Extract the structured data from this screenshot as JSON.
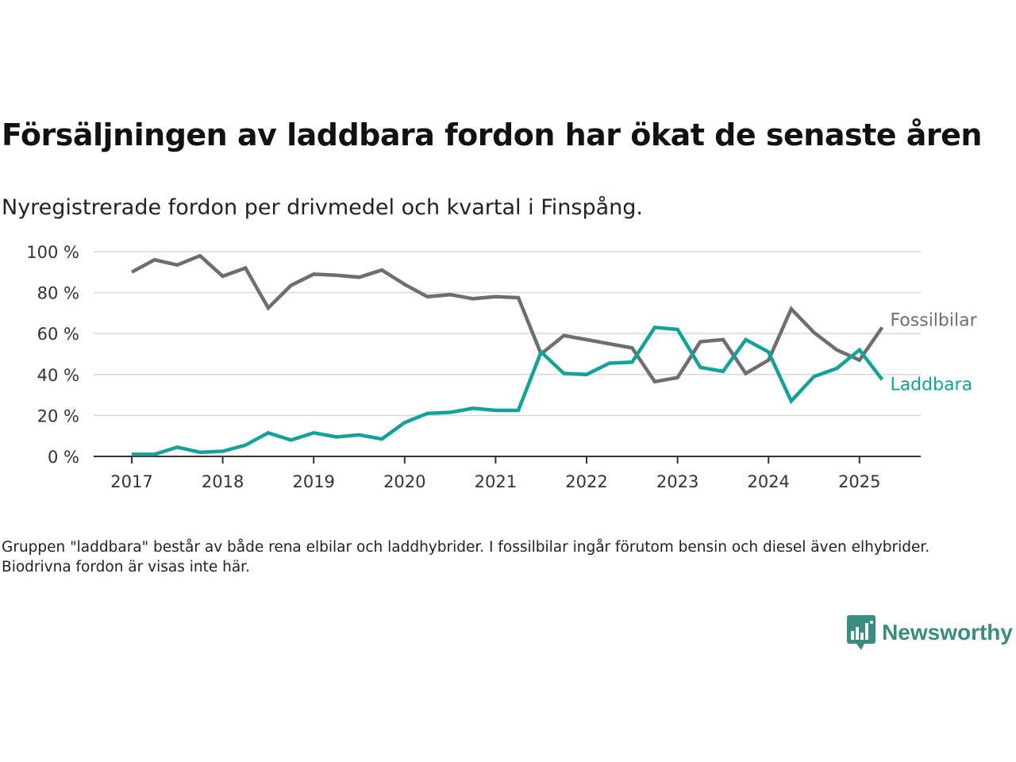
{
  "title": "Försäljningen av laddbara fordon har ökat de senaste åren",
  "subtitle": "Nyregistrerade fordon per drivmedel och kvartal i Finspång.",
  "note": "Gruppen \"laddbara\" består av både rena elbilar och laddhybrider. I fossilbilar ingår förutom bensin och diesel även elhybrider. Biodrivna fordon är visas inte här.",
  "brand": {
    "name": "Newsworthy",
    "icon": "newsworthy-logo-icon"
  },
  "colors": {
    "fossil": "#6e6d72",
    "laddbara": "#14a298",
    "grid": "#d9d9d9",
    "axis": "#333333"
  },
  "chart_data": {
    "type": "line",
    "title": "Försäljningen av laddbara fordon har ökat de senaste åren",
    "subtitle": "Nyregistrerade fordon per drivmedel och kvartal i Finspång.",
    "xlabel": "",
    "ylabel": "",
    "ylim": [
      0,
      100
    ],
    "yticks": [
      "0 %",
      "20 %",
      "40 %",
      "60 %",
      "80 %",
      "100 %"
    ],
    "ytick_values": [
      0,
      20,
      40,
      60,
      80,
      100
    ],
    "xticks": [
      "2017",
      "2018",
      "2019",
      "2020",
      "2021",
      "2022",
      "2023",
      "2024",
      "2025"
    ],
    "grid": true,
    "legend": "inline labels at line ends",
    "x": [
      "2017Q1",
      "2017Q2",
      "2017Q3",
      "2017Q4",
      "2018Q1",
      "2018Q2",
      "2018Q3",
      "2018Q4",
      "2019Q1",
      "2019Q2",
      "2019Q3",
      "2019Q4",
      "2020Q1",
      "2020Q2",
      "2020Q3",
      "2020Q4",
      "2021Q1",
      "2021Q2",
      "2021Q3",
      "2021Q4",
      "2022Q1",
      "2022Q2",
      "2022Q3",
      "2022Q4",
      "2023Q1",
      "2023Q2",
      "2023Q3",
      "2023Q4",
      "2024Q1",
      "2024Q2",
      "2024Q3",
      "2024Q4",
      "2025Q1",
      "2025Q2"
    ],
    "series": [
      {
        "name": "Fossilbilar",
        "values": [
          90,
          96,
          93.5,
          98,
          88,
          92,
          72.5,
          83.5,
          89,
          88.5,
          87.5,
          91,
          84,
          78,
          79,
          77,
          78,
          77.5,
          50,
          59,
          57,
          55,
          53,
          36.5,
          38.5,
          56,
          57,
          40.5,
          47,
          72,
          60.5,
          52,
          47,
          63
        ]
      },
      {
        "name": "Laddbara",
        "values": [
          1,
          1,
          4.5,
          2,
          2.5,
          5.5,
          11.5,
          8,
          11.5,
          9.5,
          10.5,
          8.5,
          16.5,
          21,
          21.5,
          23.5,
          22.5,
          22.5,
          51,
          40.5,
          40,
          45.5,
          46,
          63,
          62,
          43.5,
          41.5,
          57,
          51,
          27,
          39,
          43,
          52,
          37.5
        ]
      }
    ]
  }
}
